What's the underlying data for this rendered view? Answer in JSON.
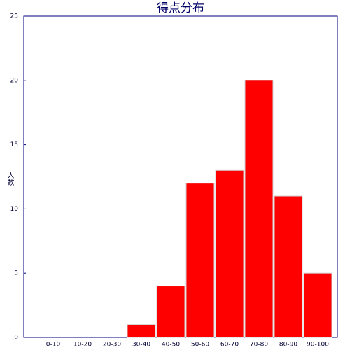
{
  "chart_data": {
    "type": "bar",
    "title": "得点分布",
    "y_label": "人数",
    "categories": [
      "0-10",
      "10-20",
      "20-30",
      "30-40",
      "40-50",
      "50-60",
      "60-70",
      "70-80",
      "80-90",
      "90-100"
    ],
    "values": [
      0,
      0,
      0,
      1,
      4,
      12,
      13,
      20,
      11,
      5
    ],
    "color": "#ff0000",
    "ylim": [
      0,
      25
    ],
    "yticks": [
      0,
      5,
      10,
      15,
      20,
      25
    ],
    "grid": false
  }
}
